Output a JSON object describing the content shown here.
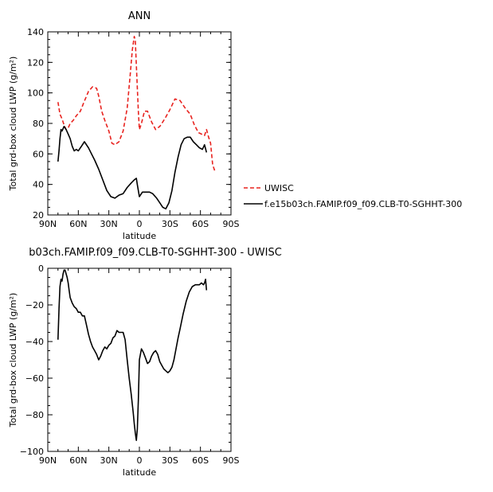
{
  "chart_data": [
    {
      "type": "line",
      "title": "ANN",
      "xlabel": "latitude",
      "ylabel": "Total grd-box cloud LWP (g/m²)",
      "xlim": [
        90,
        -90
      ],
      "ylim": [
        20,
        140
      ],
      "x_ticks": [
        90,
        60,
        30,
        0,
        -30,
        -60,
        -90
      ],
      "x_tick_labels": [
        "90N",
        "60N",
        "30N",
        "0",
        "30S",
        "60S",
        "90S"
      ],
      "y_ticks": [
        20,
        40,
        60,
        80,
        100,
        120,
        140
      ],
      "y_tick_labels": [
        "20",
        "40",
        "60",
        "80",
        "100",
        "120",
        "140"
      ],
      "legend": "right",
      "series": [
        {
          "name": "UWISC",
          "color": "#e8231f",
          "dash": "dashed",
          "x": [
            80,
            78,
            76,
            74,
            72,
            70,
            68,
            65,
            62,
            58,
            55,
            50,
            46,
            42,
            40,
            37,
            34,
            30,
            27,
            24,
            20,
            16,
            12,
            9,
            7,
            5,
            4,
            3,
            1,
            0,
            -2,
            -5,
            -8,
            -12,
            -16,
            -20,
            -25,
            -30,
            -35,
            -40,
            -45,
            -50,
            -54,
            -58,
            -61,
            -64,
            -66,
            -68,
            -70,
            -72,
            -74
          ],
          "y": [
            94,
            86,
            83,
            79,
            76,
            77,
            80,
            82,
            85,
            88,
            93,
            101,
            104,
            103,
            98,
            88,
            82,
            75,
            67,
            66,
            68,
            75,
            90,
            112,
            128,
            137,
            134,
            118,
            88,
            76,
            80,
            88,
            88,
            81,
            76,
            78,
            83,
            89,
            96,
            95,
            90,
            86,
            79,
            74,
            73,
            72,
            76,
            71,
            67,
            53,
            49
          ]
        },
        {
          "name": "f.e15b03ch.FAMIP.f09_f09.CLB-T0-SGHHT-300",
          "color": "#000000",
          "dash": "solid",
          "x": [
            80,
            79,
            78,
            77,
            76,
            74,
            72,
            70,
            68,
            66,
            64,
            62,
            60,
            57,
            54,
            50,
            47,
            44,
            40,
            36,
            32,
            28,
            24,
            20,
            16,
            12,
            8,
            5,
            3,
            2,
            0,
            -3,
            -6,
            -10,
            -13,
            -17,
            -20,
            -23,
            -26,
            -29,
            -32,
            -35,
            -38,
            -41,
            -44,
            -47,
            -50,
            -53,
            -56,
            -59,
            -62,
            -64,
            -66
          ],
          "y": [
            55,
            62,
            70,
            76,
            75,
            78,
            76,
            73,
            70,
            65,
            62,
            63,
            62,
            65,
            68,
            64,
            60,
            56,
            50,
            43,
            36,
            32,
            31,
            33,
            34,
            38,
            41,
            43,
            44,
            40,
            32,
            35,
            35,
            35,
            34,
            31,
            28,
            25,
            24,
            28,
            36,
            48,
            58,
            66,
            70,
            71,
            71,
            68,
            66,
            64,
            63,
            66,
            61
          ]
        }
      ]
    },
    {
      "type": "line",
      "title": "b03ch.FAMIP.f09_f09.CLB-T0-SGHHT-300 - UWISC",
      "xlabel": "latitude",
      "ylabel": "Total grd-box cloud LWP (g/m²)",
      "xlim": [
        90,
        -90
      ],
      "ylim": [
        -100,
        0
      ],
      "x_ticks": [
        90,
        60,
        30,
        0,
        -30,
        -60,
        -90
      ],
      "x_tick_labels": [
        "90N",
        "60N",
        "30N",
        "0",
        "30S",
        "60S",
        "90S"
      ],
      "y_ticks": [
        -100,
        -80,
        -60,
        -40,
        -20,
        0
      ],
      "y_tick_labels": [
        "−100",
        "−80",
        "−60",
        "−40",
        "−20",
        "0"
      ],
      "series": [
        {
          "color": "#000000",
          "dash": "solid",
          "x": [
            80,
            79,
            78,
            77,
            76,
            75,
            74,
            73,
            72,
            71,
            70,
            69,
            68,
            66,
            64,
            62,
            60,
            58,
            56,
            54,
            52,
            50,
            48,
            46,
            44,
            42,
            40,
            38,
            36,
            34,
            32,
            30,
            28,
            26,
            24,
            22,
            20,
            18,
            16,
            14,
            12,
            10,
            8,
            6,
            5,
            4,
            3,
            2,
            1,
            0,
            -2,
            -4,
            -6,
            -8,
            -10,
            -12,
            -14,
            -16,
            -18,
            -20,
            -22,
            -24,
            -26,
            -28,
            -30,
            -32,
            -34,
            -36,
            -38,
            -40,
            -43,
            -46,
            -49,
            -52,
            -55,
            -57,
            -59,
            -61,
            -63,
            -64,
            -65,
            -66
          ],
          "y": [
            -39,
            -22,
            -10,
            -6,
            -7,
            -3,
            -1,
            -1,
            -3,
            -5,
            -8,
            -12,
            -16,
            -19,
            -21,
            -22,
            -24,
            -24,
            -26,
            -26,
            -31,
            -36,
            -40,
            -43,
            -45,
            -47,
            -50,
            -48,
            -45,
            -43,
            -44,
            -42,
            -41,
            -38,
            -37,
            -34,
            -35,
            -35,
            -35,
            -39,
            -50,
            -60,
            -69,
            -79,
            -85,
            -90,
            -94,
            -88,
            -72,
            -50,
            -44,
            -46,
            -49,
            -52,
            -51,
            -48,
            -46,
            -45,
            -47,
            -51,
            -53,
            -55,
            -56,
            -57,
            -56,
            -54,
            -50,
            -44,
            -38,
            -33,
            -25,
            -18,
            -13,
            -10,
            -9,
            -9,
            -9,
            -8,
            -9,
            -8,
            -6,
            -12
          ]
        }
      ]
    }
  ]
}
